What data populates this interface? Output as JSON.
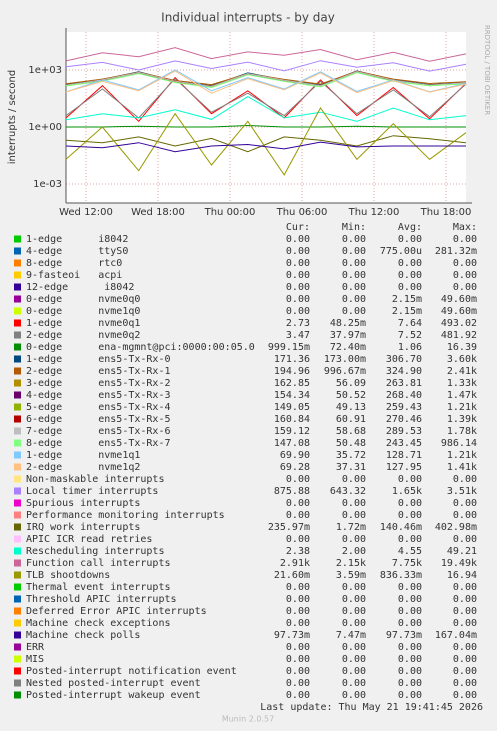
{
  "chart_data": {
    "type": "line",
    "title": "Individual interrupts - by day",
    "y_label": "interrupts / second",
    "side_label": "RRDTOOL / TOBI OETIKER",
    "log_scale": true,
    "grid": true,
    "ylim": [
      0.0001,
      100000
    ],
    "yticks": [
      {
        "value": 1000,
        "label": "1e+03"
      },
      {
        "value": 1,
        "label": "1e+00"
      },
      {
        "value": 0.001,
        "label": "1e-03"
      }
    ],
    "xtick_labels": [
      "Wed 12:00",
      "Wed 18:00",
      "Thu 00:00",
      "Thu 06:00",
      "Thu 12:00",
      "Thu 18:00"
    ],
    "legend_headers": [
      "Cur:",
      "Min:",
      "Avg:",
      "Max:"
    ],
    "series": [
      {
        "name": "1-edge      i8042",
        "color": "#00cc00",
        "cur": "0.00",
        "min": "0.00",
        "avg": "0.00",
        "max": "0.00"
      },
      {
        "name": "4-edge      ttyS0",
        "color": "#0066b3",
        "cur": "0.00",
        "min": "0.00",
        "avg": "775.00u",
        "max": "281.32m"
      },
      {
        "name": "8-edge      rtc0",
        "color": "#ff8000",
        "cur": "0.00",
        "min": "0.00",
        "avg": "0.00",
        "max": "0.00"
      },
      {
        "name": "9-fasteoi   acpi",
        "color": "#ffcc00",
        "cur": "0.00",
        "min": "0.00",
        "avg": "0.00",
        "max": "0.00"
      },
      {
        "name": "12-edge      i8042",
        "color": "#330099",
        "cur": "0.00",
        "min": "0.00",
        "avg": "0.00",
        "max": "0.00"
      },
      {
        "name": "0-edge      nvme0q0",
        "color": "#990099",
        "cur": "0.00",
        "min": "0.00",
        "avg": "2.15m",
        "max": "49.60m"
      },
      {
        "name": "0-edge      nvme1q0",
        "color": "#ccff00",
        "cur": "0.00",
        "min": "0.00",
        "avg": "2.15m",
        "max": "49.60m"
      },
      {
        "name": "1-edge      nvme0q1",
        "color": "#ff0000",
        "cur": "2.73",
        "min": "48.25m",
        "avg": "7.64",
        "max": "493.02",
        "values": [
          3,
          150,
          2,
          400,
          5,
          80,
          3,
          300,
          4,
          120,
          2.7,
          200
        ]
      },
      {
        "name": "2-edge      nvme0q2",
        "color": "#808080",
        "cur": "3.47",
        "min": "37.97m",
        "avg": "7.52",
        "max": "481.92",
        "values": [
          4,
          100,
          3,
          350,
          6,
          60,
          4,
          250,
          5,
          90,
          3.5,
          180
        ]
      },
      {
        "name": "0-edge      ena-mgmnt@pci:0000:00:05.0",
        "color": "#008f00",
        "cur": "999.15m",
        "min": "72.40m",
        "avg": "1.06",
        "max": "16.39",
        "values": [
          1,
          1,
          1.1,
          1,
          1,
          1.2,
          1,
          1,
          1.1,
          1,
          1,
          1
        ]
      },
      {
        "name": "1-edge      ens5-Tx-Rx-0",
        "color": "#00487d",
        "cur": "171.36",
        "min": "173.00m",
        "avg": "306.70",
        "max": "3.60k",
        "values": [
          170,
          320,
          800,
          260,
          150,
          700,
          300,
          160,
          900,
          310,
          171,
          220
        ]
      },
      {
        "name": "2-edge      ens5-Tx-Rx-1",
        "color": "#b35a00",
        "cur": "194.96",
        "min": "996.67m",
        "avg": "324.90",
        "max": "2.41k",
        "values": [
          190,
          330,
          760,
          280,
          170,
          650,
          320,
          180,
          850,
          330,
          195,
          240
        ]
      },
      {
        "name": "3-edge      ens5-Tx-Rx-2",
        "color": "#b38f00",
        "cur": "162.85",
        "min": "56.09",
        "avg": "263.81",
        "max": "1.33k",
        "values": [
          160,
          280,
          700,
          240,
          140,
          600,
          270,
          150,
          780,
          270,
          163,
          200
        ]
      },
      {
        "name": "4-edge      ens5-Tx-Rx-3",
        "color": "#6b006b",
        "cur": "154.34",
        "min": "50.52",
        "avg": "268.40",
        "max": "1.47k",
        "values": [
          150,
          290,
          720,
          250,
          130,
          620,
          280,
          140,
          800,
          280,
          154,
          210
        ]
      },
      {
        "name": "5-edge      ens5-Tx-Rx-4",
        "color": "#8fb300",
        "cur": "149.05",
        "min": "49.13",
        "avg": "259.43",
        "max": "1.21k",
        "values": [
          145,
          270,
          690,
          230,
          125,
          580,
          260,
          135,
          760,
          260,
          149,
          195
        ]
      },
      {
        "name": "6-edge      ens5-Tx-Rx-5",
        "color": "#b30000",
        "cur": "160.84",
        "min": "60.91",
        "avg": "270.46",
        "max": "1.39k",
        "values": [
          158,
          285,
          710,
          245,
          138,
          610,
          275,
          148,
          790,
          275,
          161,
          205
        ]
      },
      {
        "name": "7-edge      ens5-Tx-Rx-6",
        "color": "#bebebe",
        "cur": "159.12",
        "min": "58.68",
        "avg": "289.53",
        "max": "1.78k",
        "values": [
          157,
          300,
          740,
          255,
          136,
          640,
          290,
          147,
          820,
          290,
          159,
          215
        ]
      },
      {
        "name": "8-edge      ens5-Tx-Rx-7",
        "color": "#80ff80",
        "cur": "147.08",
        "min": "50.48",
        "avg": "243.45",
        "max": "986.14",
        "values": [
          145,
          260,
          650,
          220,
          120,
          560,
          250,
          130,
          720,
          250,
          147,
          190
        ]
      },
      {
        "name": "1-edge      nvme1q1",
        "color": "#80c9ff",
        "cur": "69.90",
        "min": "35.72",
        "avg": "128.71",
        "max": "1.21k",
        "values": [
          70,
          300,
          90,
          1000,
          80,
          400,
          100,
          800,
          75,
          300,
          70,
          200
        ]
      },
      {
        "name": "2-edge      nvme1q2",
        "color": "#ffc080",
        "cur": "69.28",
        "min": "37.31",
        "avg": "127.95",
        "max": "1.41k",
        "values": [
          70,
          250,
          80,
          900,
          60,
          350,
          90,
          700,
          65,
          280,
          69,
          180
        ]
      },
      {
        "name": "Non-maskable interrupts",
        "color": "#ffe680",
        "cur": "0.00",
        "min": "0.00",
        "avg": "0.00",
        "max": "0.00"
      },
      {
        "name": "Local timer interrupts",
        "color": "#aa80ff",
        "cur": "875.88",
        "min": "643.32",
        "avg": "1.65k",
        "max": "3.51k",
        "values": [
          1500,
          2500,
          1000,
          3000,
          1200,
          2600,
          900,
          3100,
          1400,
          2400,
          880,
          2000
        ]
      },
      {
        "name": "Spurious interrupts",
        "color": "#ee00cc",
        "cur": "0.00",
        "min": "0.00",
        "avg": "0.00",
        "max": "0.00"
      },
      {
        "name": "Performance monitoring interrupts",
        "color": "#ff8080",
        "cur": "0.00",
        "min": "0.00",
        "avg": "0.00",
        "max": "0.00"
      },
      {
        "name": "IRQ work interrupts",
        "color": "#666600",
        "cur": "235.97m",
        "min": "1.72m",
        "avg": "140.46m",
        "max": "402.98m",
        "values": [
          0.2,
          0.15,
          0.3,
          0.1,
          0.25,
          0.05,
          0.3,
          0.2,
          0.1,
          0.35,
          0.24,
          0.15
        ]
      },
      {
        "name": "APIC ICR read retries",
        "color": "#ffbfff",
        "cur": "0.00",
        "min": "0.00",
        "avg": "0.00",
        "max": "0.00"
      },
      {
        "name": "Rescheduling interrupts",
        "color": "#00ffcc",
        "cur": "2.38",
        "min": "2.00",
        "avg": "4.55",
        "max": "49.21",
        "values": [
          2.4,
          5,
          3,
          8,
          2.5,
          40,
          3,
          6,
          2,
          10,
          2.4,
          4
        ]
      },
      {
        "name": "Function call interrupts",
        "color": "#cc6699",
        "cur": "2.91k",
        "min": "2.15k",
        "avg": "7.75k",
        "max": "19.49k",
        "values": [
          3000,
          8000,
          5000,
          15000,
          4000,
          9000,
          6000,
          12000,
          3500,
          8500,
          2900,
          7000
        ]
      },
      {
        "name": "TLB shootdowns",
        "color": "#999900",
        "cur": "21.60m",
        "min": "3.59m",
        "avg": "836.33m",
        "max": "16.94",
        "values": [
          0.02,
          1,
          0.005,
          5,
          0.01,
          2,
          0.003,
          10,
          0.02,
          1.5,
          0.02,
          0.5
        ]
      },
      {
        "name": "Thermal event interrupts",
        "color": "#00cc00",
        "cur": "0.00",
        "min": "0.00",
        "avg": "0.00",
        "max": "0.00"
      },
      {
        "name": "Threshold APIC interrupts",
        "color": "#0066b3",
        "cur": "0.00",
        "min": "0.00",
        "avg": "0.00",
        "max": "0.00"
      },
      {
        "name": "Deferred Error APIC interrupts",
        "color": "#ff8000",
        "cur": "0.00",
        "min": "0.00",
        "avg": "0.00",
        "max": "0.00"
      },
      {
        "name": "Machine check exceptions",
        "color": "#ffcc00",
        "cur": "0.00",
        "min": "0.00",
        "avg": "0.00",
        "max": "0.00"
      },
      {
        "name": "Machine check polls",
        "color": "#330099",
        "cur": "97.73m",
        "min": "7.47m",
        "avg": "97.73m",
        "max": "167.04m",
        "values": [
          0.1,
          0.08,
          0.15,
          0.05,
          0.1,
          0.12,
          0.07,
          0.16,
          0.09,
          0.1,
          0.1,
          0.1
        ]
      },
      {
        "name": "ERR",
        "color": "#990099",
        "cur": "0.00",
        "min": "0.00",
        "avg": "0.00",
        "max": "0.00"
      },
      {
        "name": "MIS",
        "color": "#ccff00",
        "cur": "0.00",
        "min": "0.00",
        "avg": "0.00",
        "max": "0.00"
      },
      {
        "name": "Posted-interrupt notification event",
        "color": "#ff0000",
        "cur": "0.00",
        "min": "0.00",
        "avg": "0.00",
        "max": "0.00"
      },
      {
        "name": "Nested posted-interrupt event",
        "color": "#808080",
        "cur": "0.00",
        "min": "0.00",
        "avg": "0.00",
        "max": "0.00"
      },
      {
        "name": "Posted-interrupt wakeup event",
        "color": "#008f00",
        "cur": "0.00",
        "min": "0.00",
        "avg": "0.00",
        "max": "0.00"
      }
    ],
    "last_update": "Last update: Thu May 21 19:41:45 2026",
    "footer": "Munin 2.0.57"
  }
}
